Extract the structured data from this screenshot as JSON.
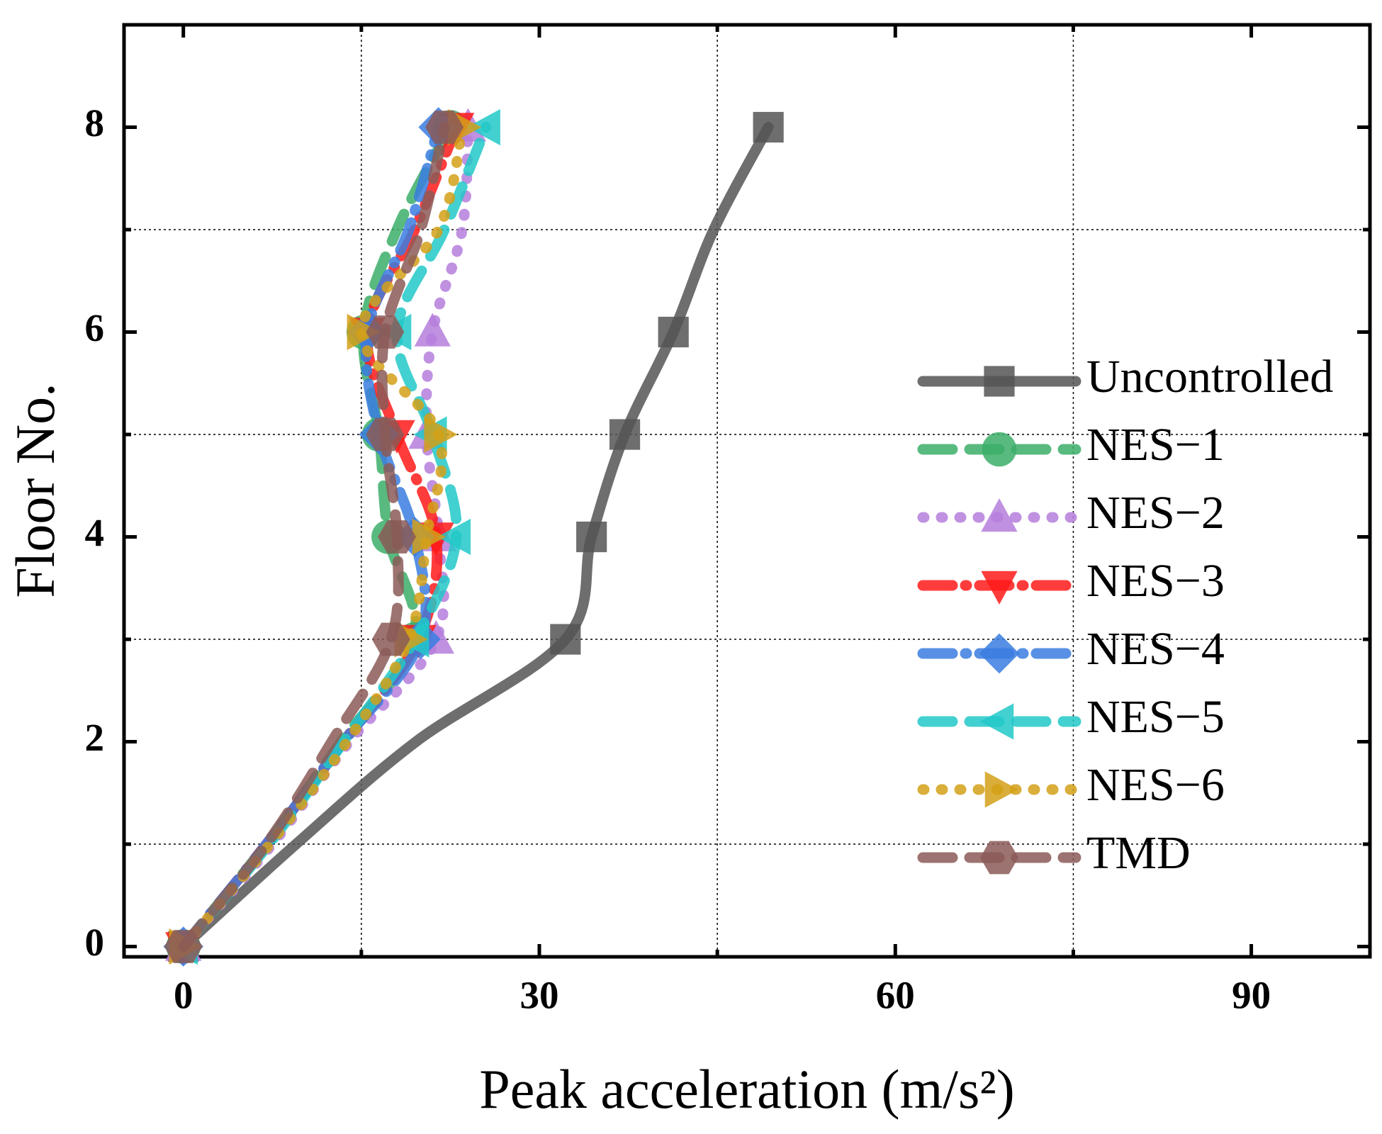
{
  "chart_data": {
    "type": "line",
    "orientation": "horizontal",
    "xlabel": "Peak acceleration (m/s²)",
    "ylabel": "Floor No.",
    "floors": [
      0,
      1,
      2,
      3,
      4,
      5,
      6,
      7,
      8
    ],
    "marker_floors": [
      0,
      3,
      4,
      5,
      6,
      8
    ],
    "xlim": [
      -5,
      100
    ],
    "xticks": [
      0,
      30,
      60,
      90
    ],
    "xminorticks": [
      15,
      45,
      75
    ],
    "ylim": [
      -0.1,
      9
    ],
    "yticks": [
      0,
      2,
      4,
      6,
      8
    ],
    "yminorticks": [
      1,
      3,
      5,
      7
    ],
    "grid": "minor",
    "legend": "right",
    "series": [
      {
        "name": "Uncontrolled",
        "color": "#555555",
        "dash": "solid",
        "marker": "square",
        "values": [
          0,
          9.5,
          19.6,
          32.2,
          34.4,
          37.2,
          41.3,
          44.7,
          49.3
        ]
      },
      {
        "name": "NES−1",
        "color": "#3cae68",
        "dash": "dash",
        "marker": "circle",
        "values": [
          0,
          7,
          13.3,
          19.5,
          17.3,
          16.5,
          15.2,
          18,
          22.5
        ]
      },
      {
        "name": "NES−2",
        "color": "#b57edc",
        "dash": "dot",
        "marker": "triangle-up",
        "values": [
          0,
          7.5,
          14,
          21.3,
          21.5,
          20.5,
          21,
          23.5,
          24
        ]
      },
      {
        "name": "NES−3",
        "color": "#ff1a1a",
        "dash": "dashdot",
        "marker": "triangle-down",
        "values": [
          0,
          7,
          13.5,
          19.8,
          21.3,
          18,
          15.5,
          19.5,
          23
        ]
      },
      {
        "name": "NES−4",
        "color": "#3a7de0",
        "dash": "dashdot",
        "marker": "diamond",
        "values": [
          0,
          7,
          13.5,
          20,
          19.5,
          16.5,
          15.5,
          19,
          21.5
        ]
      },
      {
        "name": "NES−5",
        "color": "#22c8c8",
        "dash": "dash",
        "marker": "triangle-left",
        "values": [
          0,
          7.2,
          13.5,
          19.5,
          23,
          21,
          18,
          22,
          25.5
        ]
      },
      {
        "name": "NES−6",
        "color": "#d4a017",
        "dash": "dot",
        "marker": "triangle-right",
        "values": [
          0,
          7.3,
          13.8,
          19,
          20.5,
          21.5,
          15,
          21.5,
          23.5
        ]
      },
      {
        "name": "TMD",
        "color": "#8b5a57",
        "dash": "dash",
        "marker": "hexagon",
        "values": [
          0,
          7,
          12.5,
          17.5,
          18,
          17,
          17,
          20,
          22
        ]
      }
    ]
  }
}
